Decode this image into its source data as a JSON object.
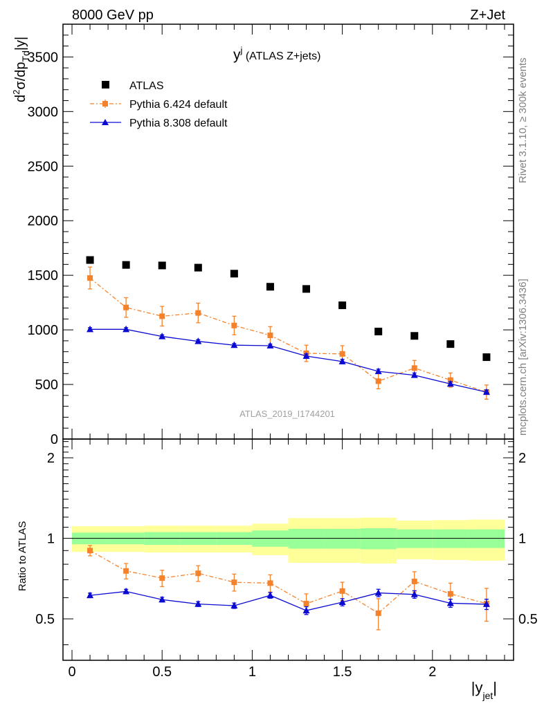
{
  "header": {
    "left": "8000 GeV pp",
    "right": "Z+Jet"
  },
  "side_texts": {
    "rivet": "Rivet 3.1.10, ≥ 300k events",
    "mcplots": "mcplots.cern.ch [arXiv:1306.3436]"
  },
  "watermark": "ATLAS_2019_I1744201",
  "chart_data": [
    {
      "type": "scatter",
      "panel": "main",
      "title_main": "y",
      "title_sup": "j",
      "title_rest": " (ATLAS Z+jets)",
      "ylabel": "d²σ/dp_Td|y|",
      "ylim": [
        0,
        3800
      ],
      "xlim": [
        -0.05,
        2.45
      ],
      "yticks": [
        0,
        500,
        1000,
        1500,
        2000,
        2500,
        3000,
        3500
      ],
      "ytick_labels": [
        "0",
        "500",
        "1000",
        "1500",
        "2000",
        "2500",
        "3000",
        "3500"
      ],
      "legend_position": "top-left",
      "legend": [
        "ATLAS",
        "Pythia 6.424 default",
        "Pythia 8.308 default"
      ],
      "x": [
        0.1,
        0.3,
        0.5,
        0.7,
        0.9,
        1.1,
        1.3,
        1.5,
        1.7,
        1.9,
        2.1,
        2.3
      ],
      "series": [
        {
          "name": "ATLAS",
          "color": "#000000",
          "marker": "square",
          "values": [
            1640,
            1595,
            1590,
            1570,
            1515,
            1395,
            1375,
            1225,
            985,
            945,
            870,
            750
          ]
        },
        {
          "name": "Pythia 6.424 default",
          "color": "#f5822a",
          "marker": "square",
          "style": "dash-dot",
          "values": [
            1475,
            1205,
            1125,
            1155,
            1040,
            950,
            785,
            780,
            530,
            650,
            540,
            430
          ],
          "errors": [
            100,
            90,
            90,
            90,
            85,
            80,
            75,
            75,
            70,
            70,
            65,
            65
          ]
        },
        {
          "name": "Pythia 8.308 default",
          "color": "#0a0ad2",
          "marker": "triangle",
          "style": "solid",
          "values": [
            1005,
            1005,
            940,
            895,
            860,
            855,
            760,
            710,
            620,
            585,
            505,
            430
          ],
          "errors": [
            15,
            15,
            15,
            15,
            15,
            15,
            20,
            20,
            20,
            20,
            20,
            20
          ]
        }
      ]
    },
    {
      "type": "scatter",
      "panel": "ratio",
      "ylabel": "Ratio to ATLAS",
      "ylim": [
        0.35,
        2.35
      ],
      "xlim": [
        -0.05,
        2.45
      ],
      "yticks": [
        0.5,
        1,
        2
      ],
      "ytick_labels": [
        "0.5",
        "1",
        "2"
      ],
      "xticks": [
        0,
        0.5,
        1,
        1.5,
        2
      ],
      "xtick_labels": [
        "0",
        "0.5",
        "1",
        "1.5",
        "2"
      ],
      "xlabel": "|y",
      "xlabel_sub": "jet",
      "bin_edges": [
        0,
        0.2,
        0.4,
        0.6,
        0.8,
        1.0,
        1.2,
        1.4,
        1.6,
        1.8,
        2.0,
        2.2,
        2.4
      ],
      "band_stat": [
        [
          0.95,
          1.05
        ],
        [
          0.95,
          1.05
        ],
        [
          0.945,
          1.055
        ],
        [
          0.945,
          1.055
        ],
        [
          0.945,
          1.055
        ],
        [
          0.93,
          1.07
        ],
        [
          0.915,
          1.085
        ],
        [
          0.915,
          1.085
        ],
        [
          0.91,
          1.09
        ],
        [
          0.92,
          1.08
        ],
        [
          0.92,
          1.08
        ],
        [
          0.92,
          1.08
        ]
      ],
      "band_total": [
        [
          0.89,
          1.11
        ],
        [
          0.89,
          1.11
        ],
        [
          0.885,
          1.115
        ],
        [
          0.885,
          1.115
        ],
        [
          0.885,
          1.115
        ],
        [
          0.865,
          1.135
        ],
        [
          0.81,
          1.19
        ],
        [
          0.81,
          1.19
        ],
        [
          0.805,
          1.195
        ],
        [
          0.835,
          1.165
        ],
        [
          0.83,
          1.17
        ],
        [
          0.825,
          1.175
        ]
      ],
      "band_stat_color": "#99ff99",
      "band_total_color": "#ffff99",
      "x": [
        0.1,
        0.3,
        0.5,
        0.7,
        0.9,
        1.1,
        1.3,
        1.5,
        1.7,
        1.9,
        2.1,
        2.3
      ],
      "series": [
        {
          "name": "Pythia 6.424 default",
          "color": "#f5822a",
          "values": [
            0.9,
            0.755,
            0.71,
            0.74,
            0.685,
            0.68,
            0.57,
            0.635,
            0.525,
            0.69,
            0.62,
            0.57
          ],
          "errors": [
            0.04,
            0.05,
            0.05,
            0.05,
            0.05,
            0.05,
            0.05,
            0.05,
            0.07,
            0.06,
            0.06,
            0.08
          ]
        },
        {
          "name": "Pythia 8.308 default",
          "color": "#0a0ad2",
          "values": [
            0.612,
            0.633,
            0.59,
            0.568,
            0.56,
            0.612,
            0.537,
            0.577,
            0.625,
            0.617,
            0.572,
            0.567
          ],
          "errors": [
            0.012,
            0.012,
            0.012,
            0.012,
            0.013,
            0.015,
            0.018,
            0.018,
            0.02,
            0.02,
            0.02,
            0.025
          ]
        }
      ]
    }
  ]
}
